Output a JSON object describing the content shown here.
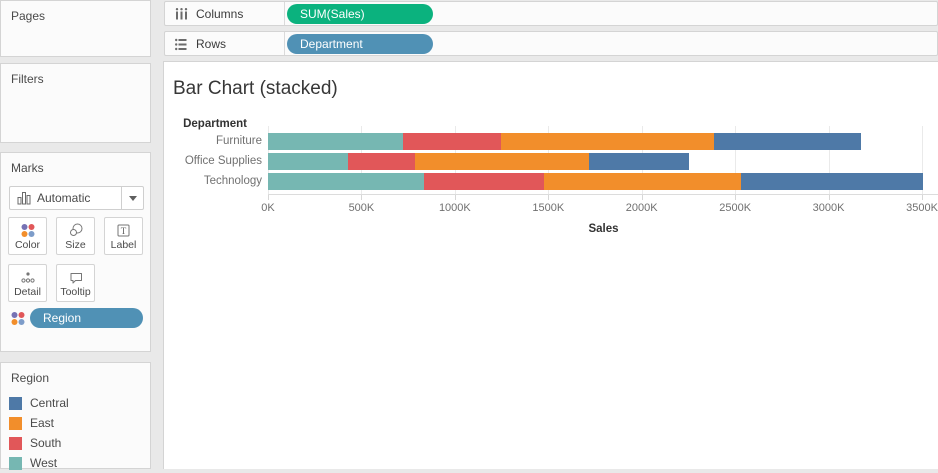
{
  "shelves": {
    "columns": {
      "label": "Columns",
      "pill": {
        "text": "SUM(Sales)",
        "color": "#0bb27e"
      }
    },
    "rows": {
      "label": "Rows",
      "pill": {
        "text": "Department",
        "color": "#5091b5"
      }
    }
  },
  "sidebar": {
    "pages": {
      "label": "Pages"
    },
    "filters": {
      "label": "Filters"
    },
    "marks": {
      "label": "Marks",
      "mark_type_selector": "Automatic",
      "buttons": [
        {
          "label": "Color",
          "icon": "color-dots"
        },
        {
          "label": "Size",
          "icon": "size-circles"
        },
        {
          "label": "Label",
          "icon": "label-t"
        },
        {
          "label": "Detail",
          "icon": "detail-dots"
        },
        {
          "label": "Tooltip",
          "icon": "tooltip-bubble"
        }
      ],
      "shelf_pill": {
        "text": "Region",
        "icon": "color-dots",
        "color": "#5091b5"
      }
    },
    "legend": {
      "title": "Region",
      "items": [
        {
          "label": "Central",
          "color": "#4e79a7"
        },
        {
          "label": "East",
          "color": "#f28e2b"
        },
        {
          "label": "South",
          "color": "#e15759"
        },
        {
          "label": "West",
          "color": "#76b7b2"
        }
      ]
    }
  },
  "chart_data": {
    "type": "bar",
    "stacked": true,
    "orientation": "horizontal",
    "title": "Bar Chart (stacked)",
    "row_field": "Department",
    "categories": [
      "Furniture",
      "Office Supplies",
      "Technology"
    ],
    "series": [
      {
        "name": "West",
        "color": "#76b7b2",
        "values_k": [
          723,
          428,
          835
        ]
      },
      {
        "name": "South",
        "color": "#e15759",
        "values_k": [
          525,
          359,
          642
        ]
      },
      {
        "name": "East",
        "color": "#f28e2b",
        "values_k": [
          1140,
          931,
          1054
        ]
      },
      {
        "name": "Central",
        "color": "#4e79a7",
        "values_k": [
          787,
          535,
          974
        ]
      }
    ],
    "totals_k": [
      3175,
      2253,
      3505
    ],
    "stack_order_note": "segments left to right: West, South, East, Central",
    "x_axis": {
      "label": "Sales",
      "ticks": [
        "0K",
        "500K",
        "1000K",
        "1500K",
        "2000K",
        "2500K",
        "3000K",
        "3500K"
      ],
      "min_k": 0,
      "max_k": 3500
    },
    "grid": true,
    "unit": "K = thousands of sales"
  }
}
